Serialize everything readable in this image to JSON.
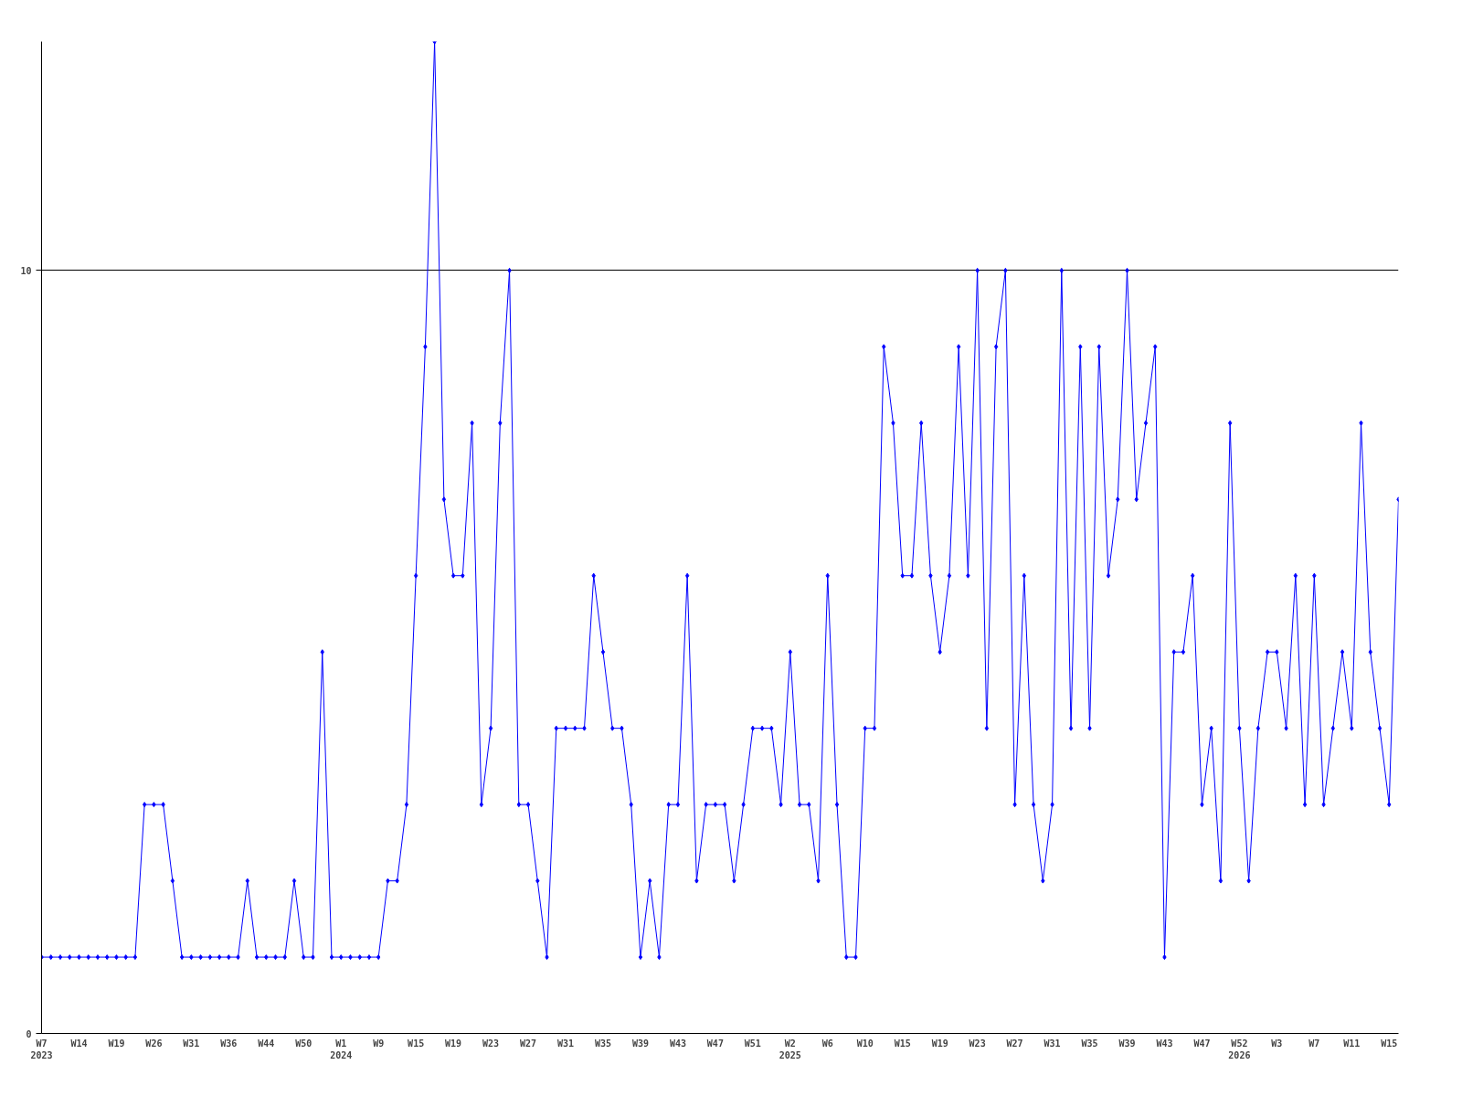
{
  "chart_data": {
    "type": "line",
    "categories": [
      "W7\n2023",
      null,
      null,
      null,
      "W14",
      null,
      null,
      null,
      "W19",
      null,
      null,
      null,
      "W26",
      null,
      null,
      null,
      "W31",
      null,
      null,
      null,
      "W36",
      null,
      null,
      null,
      "W44",
      null,
      null,
      null,
      "W50",
      null,
      null,
      null,
      "W1\n2024",
      null,
      null,
      null,
      "W9",
      null,
      null,
      null,
      "W15",
      null,
      null,
      null,
      "W19",
      null,
      null,
      null,
      "W23",
      null,
      null,
      null,
      "W27",
      null,
      null,
      null,
      "W31",
      null,
      null,
      null,
      "W35",
      null,
      null,
      null,
      "W39",
      null,
      null,
      null,
      "W43",
      null,
      null,
      null,
      "W47",
      null,
      null,
      null,
      "W51",
      null,
      null,
      null,
      "W2\n2025",
      null,
      null,
      null,
      "W6",
      null,
      null,
      null,
      "W10",
      null,
      null,
      null,
      "W15",
      null,
      null,
      null,
      "W19",
      null,
      null,
      null,
      "W23",
      null,
      null,
      null,
      "W27",
      null,
      null,
      null,
      "W31",
      null,
      null,
      null,
      "W35",
      null,
      null,
      null,
      "W39",
      null,
      null,
      null,
      "W43",
      null,
      null,
      null,
      "W47",
      null,
      null,
      null,
      "W52\n2026",
      null,
      null,
      null,
      "W3",
      null,
      null,
      null,
      "W7",
      null,
      null,
      null,
      "W11",
      null,
      null,
      null,
      "W15",
      null
    ],
    "series": [
      {
        "color": "#0000ff",
        "values": [
          1,
          1,
          1,
          1,
          1,
          1,
          1,
          1,
          1,
          1,
          1,
          3,
          3,
          3,
          2,
          1,
          1,
          1,
          1,
          1,
          1,
          1,
          2,
          1,
          1,
          1,
          1,
          2,
          1,
          1,
          5,
          1,
          1,
          1,
          1,
          1,
          1,
          2,
          2,
          3,
          6,
          9,
          13,
          7,
          6,
          6,
          8,
          3,
          4,
          8,
          10,
          3,
          3,
          2,
          1,
          4,
          4,
          4,
          4,
          6,
          5,
          4,
          4,
          3,
          1,
          2,
          1,
          3,
          3,
          6,
          2,
          3,
          3,
          3,
          2,
          3,
          4,
          4,
          4,
          3,
          5,
          3,
          3,
          2,
          6,
          3,
          1,
          1,
          4,
          4,
          9,
          8,
          6,
          6,
          8,
          6,
          5,
          6,
          9,
          6,
          10,
          4,
          9,
          10,
          3,
          6,
          3,
          2,
          3,
          10,
          4,
          9,
          4,
          9,
          6,
          7,
          10,
          7,
          8,
          9,
          1,
          5,
          5,
          6,
          3,
          4,
          2,
          8,
          4,
          2,
          4,
          5,
          5,
          4,
          6,
          3,
          6,
          3,
          4,
          5,
          4,
          8,
          5,
          4,
          3,
          7
        ]
      }
    ],
    "ylim": [
      0,
      13
    ],
    "yticks": [
      0,
      10
    ],
    "grid": "y",
    "marker": "diamond",
    "line_style": "solid"
  }
}
